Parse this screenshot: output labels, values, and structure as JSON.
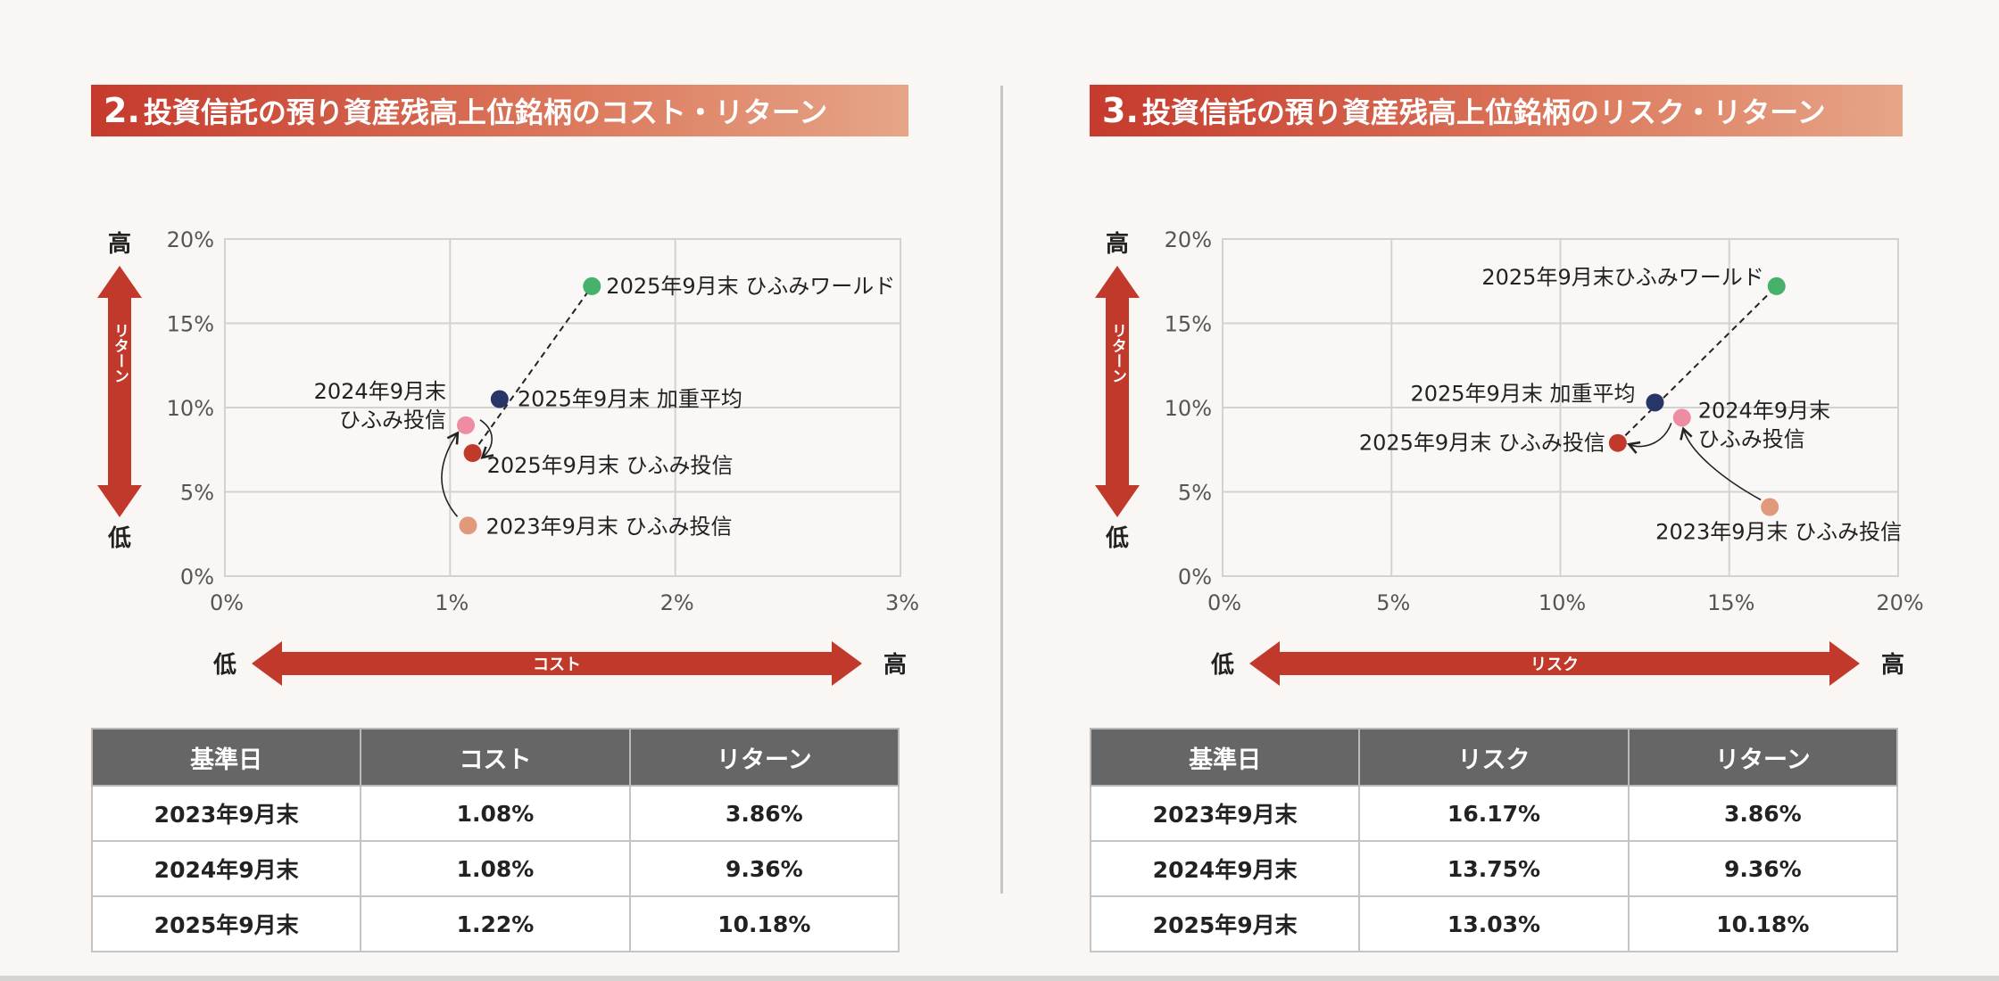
{
  "chart_data": [
    {
      "type": "scatter",
      "id": "left",
      "title_num": "2.",
      "title": "投資信託の預り資産残高上位銘柄のコスト・リターン",
      "x_axis_name": "コスト",
      "y_axis_name": "リターン",
      "axis_low": "低",
      "axis_high": "高",
      "xlim": [
        0,
        3
      ],
      "ylim": [
        0,
        20
      ],
      "x_ticks": [
        0,
        1,
        2,
        3
      ],
      "y_ticks": [
        0,
        5,
        10,
        15,
        20
      ],
      "x_tick_labels": [
        "0%",
        "1%",
        "2%",
        "3%"
      ],
      "y_tick_labels": [
        "0%",
        "5%",
        "10%",
        "15%",
        "20%"
      ],
      "grid": true,
      "points": [
        {
          "name": "2023年9月末 ひふみ投信",
          "lines": [
            "2023年9月末 ひふみ投信"
          ],
          "x": 1.08,
          "y": 3.0,
          "color": "#e09a7b"
        },
        {
          "name": "2024年9月末 ひふみ投信",
          "lines": [
            "2024年9月末",
            "ひふみ投信"
          ],
          "x": 1.07,
          "y": 8.95,
          "color": "#ee8ca1"
        },
        {
          "name": "2025年9月末 ひふみ投信",
          "lines": [
            "2025年9月末 ひふみ投信"
          ],
          "x": 1.1,
          "y": 7.3,
          "color": "#c0392b"
        },
        {
          "name": "2025年9月末 加重平均",
          "lines": [
            "2025年9月末 加重平均"
          ],
          "x": 1.22,
          "y": 10.5,
          "color": "#273567"
        },
        {
          "name": "2025年9月末 ひふみワールド",
          "lines": [
            "2025年9月末 ひふみワールド"
          ],
          "x": 1.63,
          "y": 17.2,
          "color": "#45b16b"
        }
      ],
      "table": {
        "headers": [
          "基準日",
          "コスト",
          "リターン"
        ],
        "rows": [
          [
            "2023年9月末",
            "1.08%",
            "3.86%"
          ],
          [
            "2024年9月末",
            "1.08%",
            "9.36%"
          ],
          [
            "2025年9月末",
            "1.22%",
            "10.18%"
          ]
        ]
      }
    },
    {
      "type": "scatter",
      "id": "right",
      "title_num": "3.",
      "title": "投資信託の預り資産残高上位銘柄のリスク・リターン",
      "x_axis_name": "リスク",
      "y_axis_name": "リターン",
      "axis_low": "低",
      "axis_high": "高",
      "xlim": [
        0,
        20
      ],
      "ylim": [
        0,
        20
      ],
      "x_ticks": [
        0,
        5,
        10,
        15,
        20
      ],
      "y_ticks": [
        0,
        5,
        10,
        15,
        20
      ],
      "x_tick_labels": [
        "0%",
        "5%",
        "10%",
        "15%",
        "20%"
      ],
      "y_tick_labels": [
        "0%",
        "5%",
        "10%",
        "15%",
        "20%"
      ],
      "grid": true,
      "points": [
        {
          "name": "2023年9月末 ひふみ投信",
          "lines": [
            "2023年9月末 ひふみ投信"
          ],
          "x": 16.2,
          "y": 4.1,
          "color": "#e09a7b"
        },
        {
          "name": "2024年9月末 ひふみ投信",
          "lines": [
            "2024年9月末",
            "ひふみ投信"
          ],
          "x": 13.6,
          "y": 9.4,
          "color": "#ee8ca1"
        },
        {
          "name": "2025年9月末 ひふみ投信",
          "lines": [
            "2025年9月末 ひふみ投信"
          ],
          "x": 11.7,
          "y": 7.9,
          "color": "#c0392b"
        },
        {
          "name": "2025年9月末 加重平均",
          "lines": [
            "2025年9月末 加重平均"
          ],
          "x": 12.8,
          "y": 10.3,
          "color": "#273567"
        },
        {
          "name": "2025年9月末ひふみワールド",
          "lines": [
            "2025年9月末ひふみワールド"
          ],
          "x": 16.4,
          "y": 17.2,
          "color": "#45b16b"
        }
      ],
      "table": {
        "headers": [
          "基準日",
          "リスク",
          "リターン"
        ],
        "rows": [
          [
            "2023年9月末",
            "16.17%",
            "3.86%"
          ],
          [
            "2024年9月末",
            "13.75%",
            "9.36%"
          ],
          [
            "2025年9月末",
            "13.03%",
            "10.18%"
          ]
        ]
      }
    }
  ]
}
